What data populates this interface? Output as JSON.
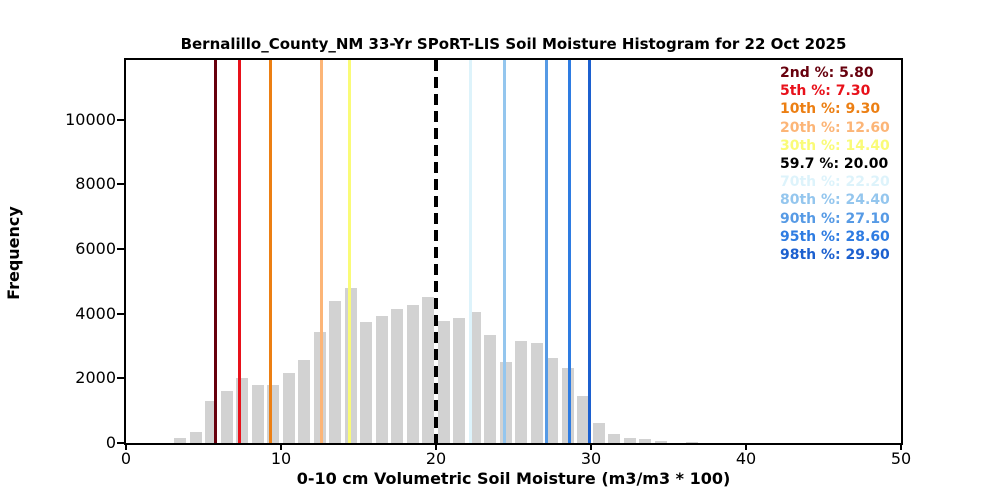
{
  "chart_data": {
    "type": "bar",
    "title": "Bernalillo_County_NM 33-Yr SPoRT-LIS Soil Moisture Histogram for 22 Oct 2025",
    "xlabel": "0-10 cm Volumetric Soil Moisture (m3/m3 * 100)",
    "ylabel": "Frequency",
    "xlim": [
      0,
      50
    ],
    "ylim": [
      0,
      11850
    ],
    "x_ticks": [
      0,
      10,
      20,
      30,
      40,
      50
    ],
    "y_ticks": [
      0,
      2000,
      4000,
      6000,
      8000,
      10000
    ],
    "grid": false,
    "legend_position": "upper right",
    "bar_color": "#d2d2d2",
    "bin_width": 1,
    "bin_centers": [
      3.5,
      4.5,
      5.5,
      6.5,
      7.5,
      8.5,
      9.5,
      10.5,
      11.5,
      12.5,
      13.5,
      14.5,
      15.5,
      16.5,
      17.5,
      18.5,
      19.5,
      20.5,
      21.5,
      22.5,
      23.5,
      24.5,
      25.5,
      26.5,
      27.5,
      28.5,
      29.5,
      30.5,
      31.5,
      32.5,
      33.5,
      34.5,
      35.5,
      36.5
    ],
    "frequencies": [
      150,
      330,
      1290,
      1600,
      2020,
      1800,
      1800,
      2180,
      2560,
      3440,
      4400,
      4810,
      3750,
      3940,
      4160,
      4270,
      4530,
      3760,
      3880,
      4050,
      3350,
      2510,
      3150,
      3090,
      2640,
      2330,
      1450,
      620,
      290,
      150,
      110,
      55,
      0,
      25
    ],
    "percentile_lines": [
      {
        "label": "2nd %",
        "value": 5.8,
        "value_text": "5.80",
        "color": "#67000d",
        "style": "solid"
      },
      {
        "label": "5th %",
        "value": 7.3,
        "value_text": "7.30",
        "color": "#e8111a",
        "style": "solid"
      },
      {
        "label": "10th %",
        "value": 9.3,
        "value_text": "9.30",
        "color": "#ec7f13",
        "style": "solid"
      },
      {
        "label": "20th %",
        "value": 12.6,
        "value_text": "12.60",
        "color": "#fcb577",
        "style": "solid"
      },
      {
        "label": "30th %",
        "value": 14.4,
        "value_text": "14.40",
        "color": "#fafb77",
        "style": "solid"
      },
      {
        "label": "59.7 %",
        "value": 20.0,
        "value_text": "20.00",
        "color": "#000000",
        "style": "dashed"
      },
      {
        "label": "70th %",
        "value": 22.2,
        "value_text": "22.20",
        "color": "#ddf3fb",
        "style": "solid"
      },
      {
        "label": "80th %",
        "value": 24.4,
        "value_text": "24.40",
        "color": "#94c6ee",
        "style": "solid"
      },
      {
        "label": "90th %",
        "value": 27.1,
        "value_text": "27.10",
        "color": "#569ae5",
        "style": "solid"
      },
      {
        "label": "95th %",
        "value": 28.6,
        "value_text": "28.60",
        "color": "#2e7ce2",
        "style": "solid"
      },
      {
        "label": "98th %",
        "value": 29.9,
        "value_text": "29.90",
        "color": "#1c60cf",
        "style": "solid"
      }
    ]
  }
}
